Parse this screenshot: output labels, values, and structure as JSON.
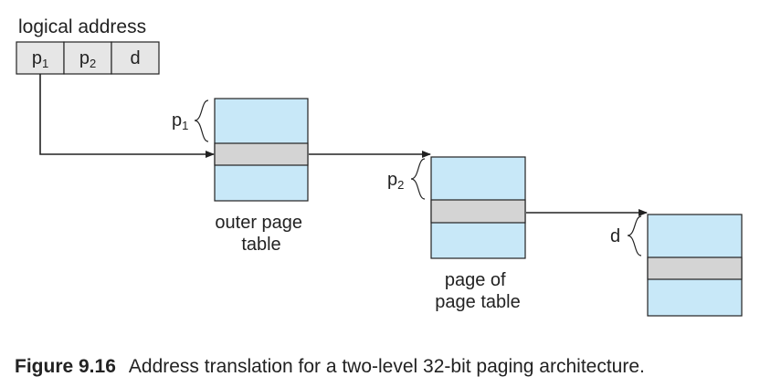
{
  "logical_address": {
    "title": "logical address",
    "fields": [
      {
        "base": "p",
        "sub": "1"
      },
      {
        "base": "p",
        "sub": "2"
      },
      {
        "base": "d",
        "sub": ""
      }
    ]
  },
  "tables": [
    {
      "label_lines": [
        "outer page",
        "table"
      ],
      "offset": {
        "base": "p",
        "sub": "1"
      }
    },
    {
      "label_lines": [
        "page of",
        "page table"
      ],
      "offset": {
        "base": "p",
        "sub": "2"
      }
    },
    {
      "label_lines": [],
      "offset": {
        "base": "d",
        "sub": ""
      }
    }
  ],
  "caption": {
    "number": "Figure 9.16",
    "text": "Address translation for a two-level 32-bit paging architecture."
  },
  "colors": {
    "table_fill": "#c8e8f8",
    "entry_fill": "#d4d4d4",
    "field_fill": "#e6e6e6",
    "stroke": "#222222"
  }
}
